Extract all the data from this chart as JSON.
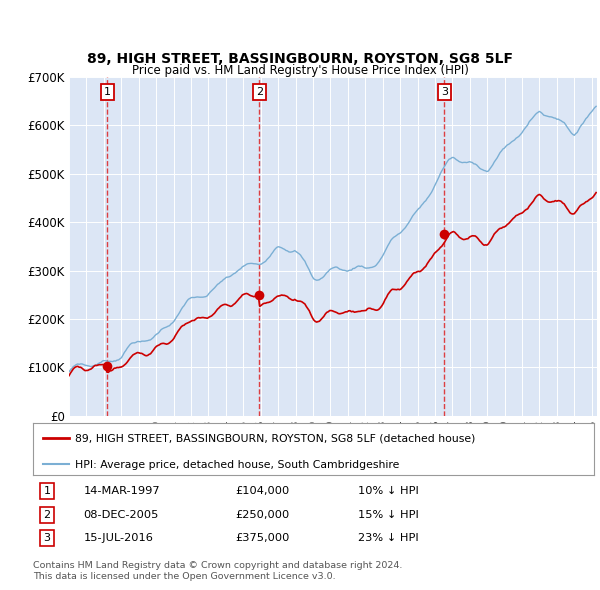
{
  "title1": "89, HIGH STREET, BASSINGBOURN, ROYSTON, SG8 5LF",
  "title2": "Price paid vs. HM Land Registry's House Price Index (HPI)",
  "ylim": [
    0,
    700000
  ],
  "yticks": [
    0,
    100000,
    200000,
    300000,
    400000,
    500000,
    600000,
    700000
  ],
  "ytick_labels": [
    "£0",
    "£100K",
    "£200K",
    "£300K",
    "£400K",
    "£500K",
    "£600K",
    "£700K"
  ],
  "plot_bg_color": "#dce6f5",
  "fig_bg_color": "#ffffff",
  "red_line_color": "#cc0000",
  "blue_line_color": "#7bafd4",
  "vline_color": "#dd2222",
  "purchases": [
    {
      "label": "1",
      "date_num": 1997.19,
      "price": 104000,
      "date_str": "14-MAR-1997",
      "price_str": "£104,000",
      "pct_str": "10% ↓ HPI"
    },
    {
      "label": "2",
      "date_num": 2005.93,
      "price": 250000,
      "date_str": "08-DEC-2005",
      "price_str": "£250,000",
      "pct_str": "15% ↓ HPI"
    },
    {
      "label": "3",
      "date_num": 2016.54,
      "price": 375000,
      "date_str": "15-JUL-2016",
      "price_str": "£375,000",
      "pct_str": "23% ↓ HPI"
    }
  ],
  "legend1": "89, HIGH STREET, BASSINGBOURN, ROYSTON, SG8 5LF (detached house)",
  "legend2": "HPI: Average price, detached house, South Cambridgeshire",
  "footnote1": "Contains HM Land Registry data © Crown copyright and database right 2024.",
  "footnote2": "This data is licensed under the Open Government Licence v3.0.",
  "xlim_left": 1995,
  "xlim_right": 2025.3
}
